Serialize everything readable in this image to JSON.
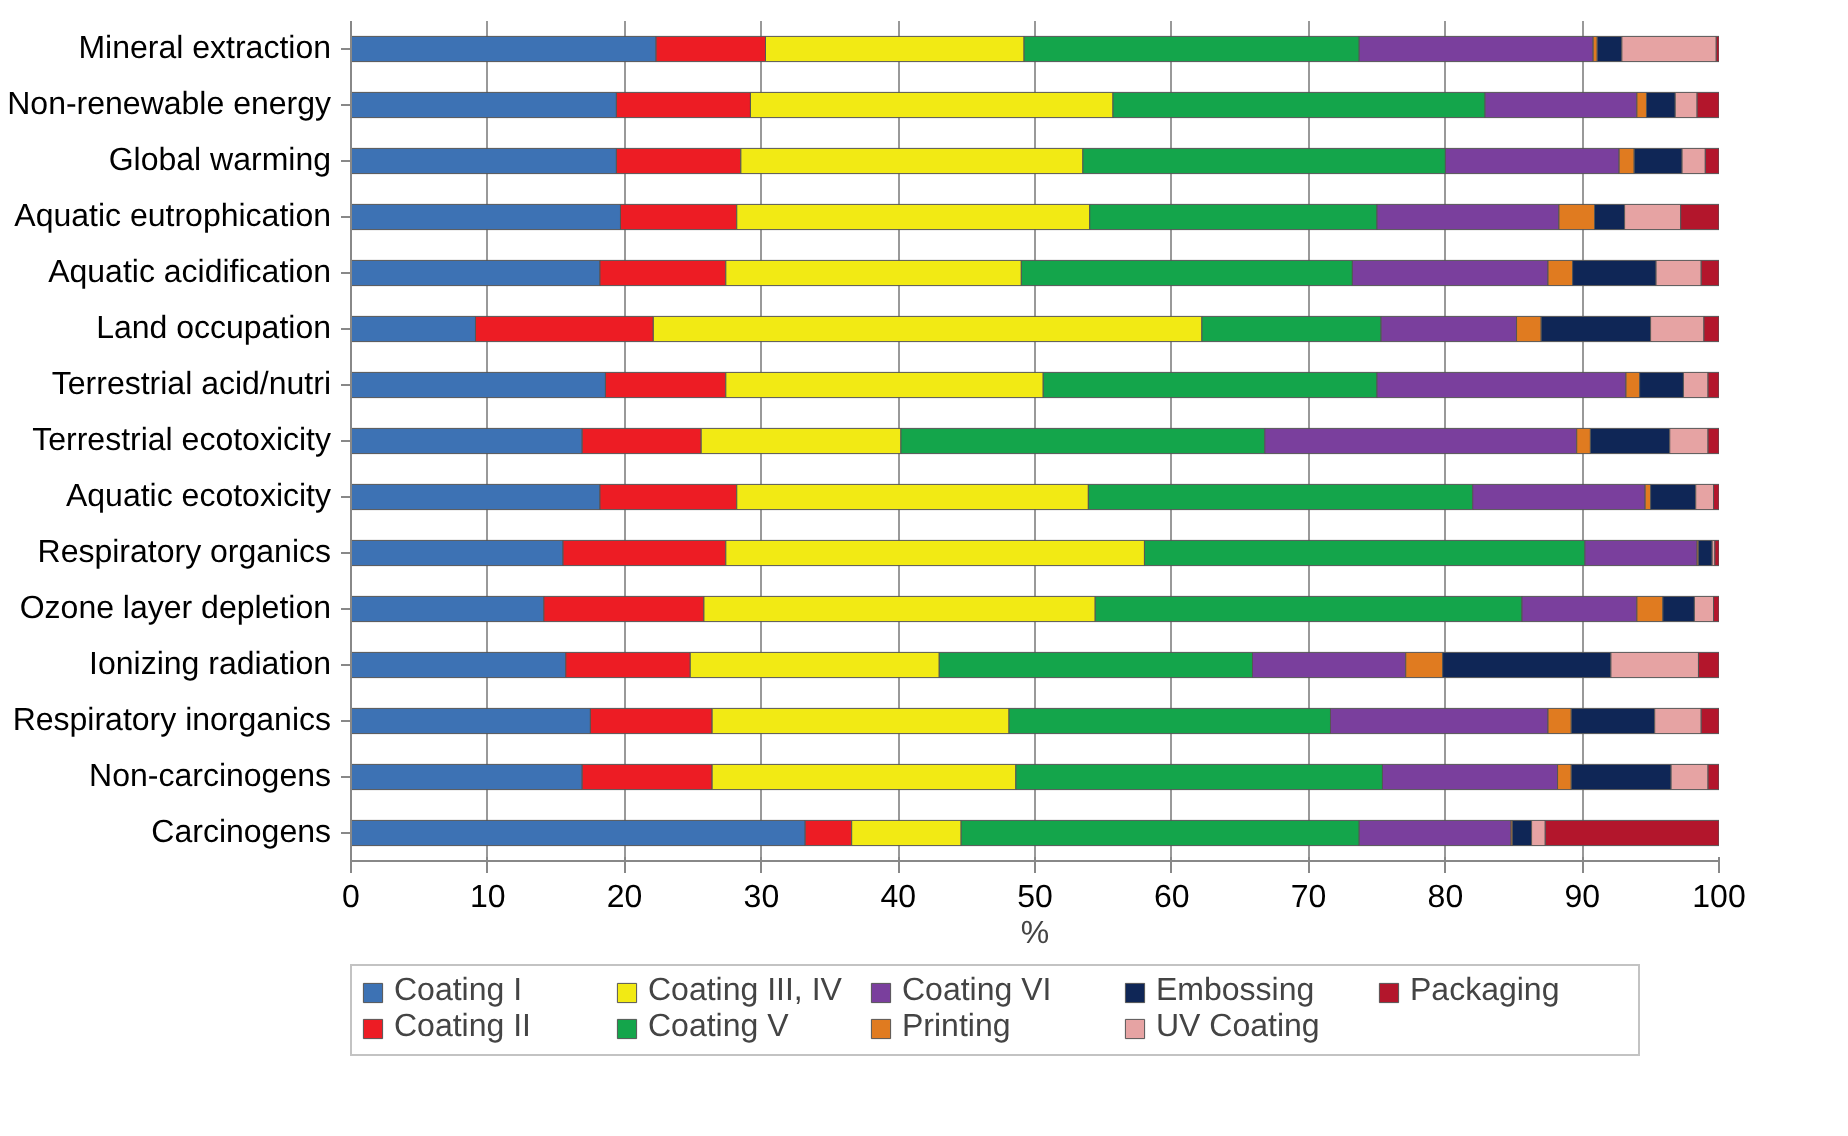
{
  "chart_data": {
    "type": "bar",
    "orientation": "horizontal",
    "stacked": true,
    "xlabel": "%",
    "categories": [
      "Mineral extraction",
      "Non-renewable energy",
      "Global warming",
      "Aquatic eutrophication",
      "Aquatic acidification",
      "Land occupation",
      "Terrestrial acid/nutri",
      "Terrestrial ecotoxicity",
      "Aquatic ecotoxicity",
      "Respiratory organics",
      "Ozone layer depletion",
      "Ionizing radiation",
      "Respiratory inorganics",
      "Non-carcinogens",
      "Carcinogens"
    ],
    "xlim": [
      0,
      100
    ],
    "xticks": [
      0,
      10,
      20,
      30,
      40,
      50,
      60,
      70,
      80,
      90,
      100
    ],
    "grid": "x",
    "legend": "bottom",
    "series": [
      {
        "name": "Coating I",
        "color": "#3d72b4",
        "values": [
          22.3,
          19.4,
          19.4,
          19.7,
          18.2,
          9.1,
          18.6,
          16.9,
          18.2,
          15.5,
          14.1,
          15.7,
          17.5,
          16.9,
          33.2
        ]
      },
      {
        "name": "Coating II",
        "color": "#ed1c24",
        "values": [
          8.0,
          9.8,
          9.1,
          8.5,
          9.2,
          13.0,
          8.8,
          8.7,
          10.0,
          11.9,
          11.7,
          9.1,
          8.9,
          9.5,
          3.4
        ]
      },
      {
        "name": "Coating III, IV",
        "color": "#f2ea14",
        "values": [
          18.9,
          26.5,
          25.0,
          25.8,
          21.6,
          40.1,
          23.2,
          14.6,
          25.7,
          30.6,
          28.6,
          18.2,
          21.7,
          22.2,
          8.0
        ]
      },
      {
        "name": "Coating V",
        "color": "#14a54b",
        "values": [
          24.5,
          27.2,
          26.5,
          21.0,
          24.2,
          13.1,
          24.4,
          26.6,
          28.1,
          32.2,
          31.2,
          22.9,
          23.5,
          26.8,
          29.1
        ]
      },
      {
        "name": "Coating VI",
        "color": "#7a3f9d",
        "values": [
          17.1,
          11.1,
          12.7,
          13.3,
          14.3,
          9.9,
          18.2,
          22.8,
          12.6,
          8.2,
          8.4,
          11.2,
          15.9,
          12.8,
          11.1
        ]
      },
      {
        "name": "Printing",
        "color": "#e07b20",
        "values": [
          0.3,
          0.7,
          1.1,
          2.6,
          1.8,
          1.8,
          1.0,
          1.0,
          0.4,
          0.1,
          1.9,
          2.7,
          1.7,
          1.0,
          0.1
        ]
      },
      {
        "name": "Embossing",
        "color": "#0f2656",
        "values": [
          1.8,
          2.1,
          3.5,
          2.2,
          6.1,
          8.0,
          3.2,
          5.8,
          3.3,
          1.0,
          2.3,
          12.3,
          6.1,
          7.3,
          1.4
        ]
      },
      {
        "name": "UV Coating",
        "color": "#e6a3a3",
        "values": [
          6.9,
          1.6,
          1.7,
          4.1,
          3.3,
          3.9,
          1.8,
          2.8,
          1.3,
          0.2,
          1.4,
          6.4,
          3.4,
          2.7,
          1.0
        ]
      },
      {
        "name": "Packaging",
        "color": "#b3162c",
        "values": [
          0.2,
          1.6,
          1.0,
          2.8,
          1.3,
          1.1,
          0.8,
          0.8,
          0.4,
          0.3,
          0.4,
          1.5,
          1.3,
          0.8,
          12.7
        ]
      }
    ]
  }
}
